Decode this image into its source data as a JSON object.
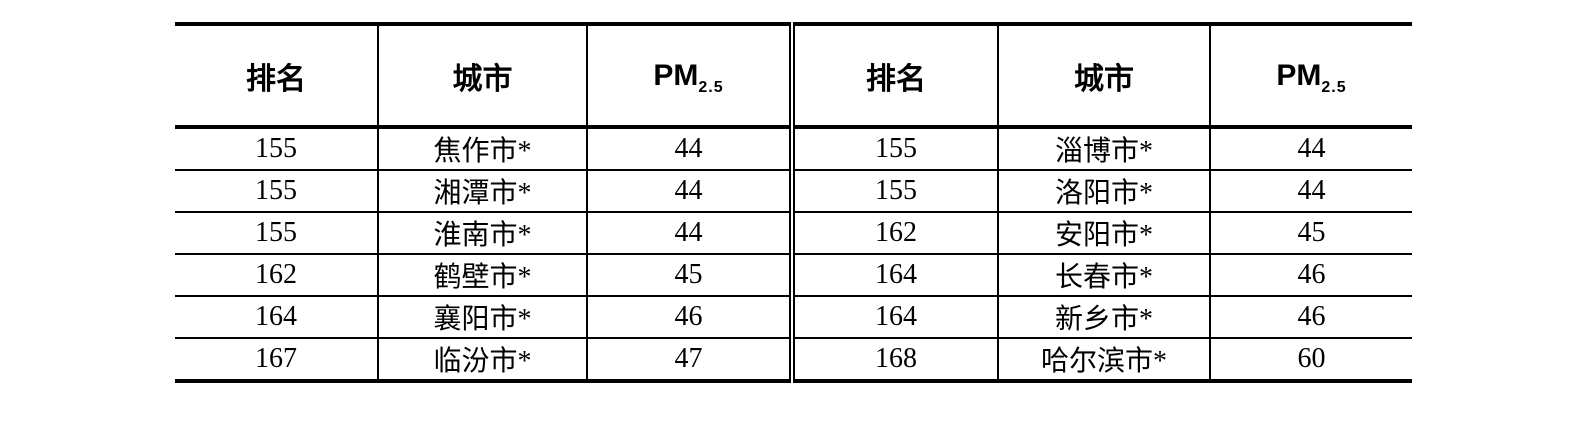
{
  "header": {
    "rank_label": "排名",
    "city_label": "城市",
    "pm_label": "PM",
    "pm_subscript": "2.5"
  },
  "table": {
    "rows": [
      [
        "155",
        "焦作市*",
        "44",
        "155",
        "淄博市*",
        "44"
      ],
      [
        "155",
        "湘潭市*",
        "44",
        "155",
        "洛阳市*",
        "44"
      ],
      [
        "155",
        "淮南市*",
        "44",
        "162",
        "安阳市*",
        "45"
      ],
      [
        "162",
        "鹤壁市*",
        "45",
        "164",
        "长春市*",
        "46"
      ],
      [
        "164",
        "襄阳市*",
        "46",
        "164",
        "新乡市*",
        "46"
      ],
      [
        "167",
        "临汾市*",
        "47",
        "168",
        "哈尔滨市*",
        "60"
      ]
    ]
  },
  "colors": {
    "border": "#000000",
    "background": "#ffffff",
    "text": "#000000"
  }
}
